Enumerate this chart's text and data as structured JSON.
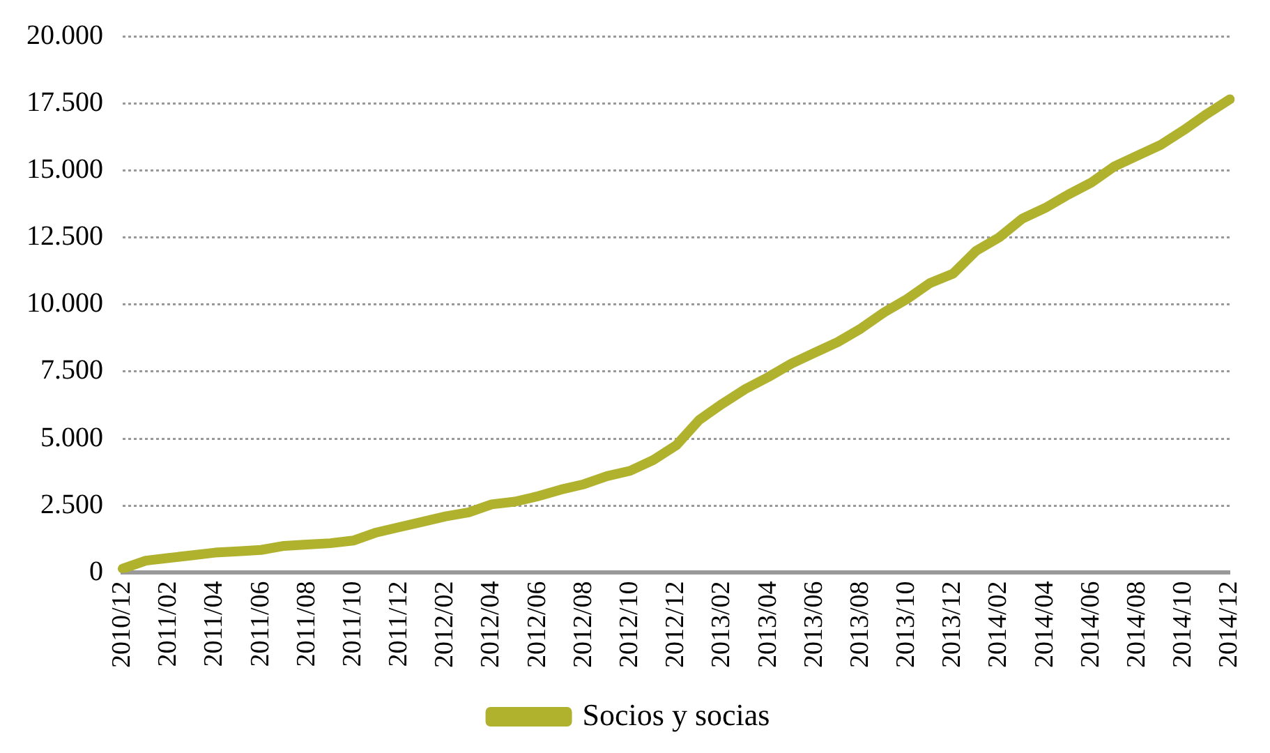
{
  "chart_data": {
    "type": "line",
    "categories": [
      "2010/12",
      null,
      "2011/02",
      null,
      "2011/04",
      null,
      "2011/06",
      null,
      "2011/08",
      null,
      "2011/10",
      null,
      "2011/12",
      null,
      "2012/02",
      null,
      "2012/04",
      null,
      "2012/06",
      null,
      "2012/08",
      null,
      "2012/10",
      null,
      "2012/12",
      null,
      "2013/02",
      null,
      "2013/04",
      null,
      "2013/06",
      null,
      "2013/08",
      null,
      "2013/10",
      null,
      "2013/12",
      null,
      "2014/02",
      null,
      "2014/04",
      null,
      "2014/06",
      null,
      "2014/08",
      null,
      "2014/10",
      null,
      "2014/12"
    ],
    "series": [
      {
        "name": "Socios y socias",
        "color": "#b0b22e",
        "values": [
          150,
          450,
          550,
          650,
          750,
          800,
          850,
          1000,
          1050,
          1100,
          1200,
          1500,
          1700,
          1900,
          2100,
          2250,
          2550,
          2650,
          2850,
          3100,
          3300,
          3600,
          3800,
          4200,
          4750,
          5700,
          6300,
          6850,
          7300,
          7800,
          8200,
          8600,
          9100,
          9700,
          10200,
          10800,
          11150,
          12000,
          12500,
          13200,
          13600,
          14100,
          14550,
          15150,
          15550,
          15950,
          16500,
          17100,
          17650
        ]
      }
    ],
    "ylim": [
      0,
      20000
    ],
    "yticks": [
      {
        "value": 0,
        "label": "0"
      },
      {
        "value": 2500,
        "label": "2.500"
      },
      {
        "value": 5000,
        "label": "5.000"
      },
      {
        "value": 7500,
        "label": "7.500"
      },
      {
        "value": 10000,
        "label": "10.000"
      },
      {
        "value": 12500,
        "label": "12.500"
      },
      {
        "value": 15000,
        "label": "15.000"
      },
      {
        "value": 17500,
        "label": "17.500"
      },
      {
        "value": 20000,
        "label": "20.000"
      }
    ],
    "grid": "y",
    "legend": "bottom",
    "marker": "none",
    "line_style": "solid"
  }
}
